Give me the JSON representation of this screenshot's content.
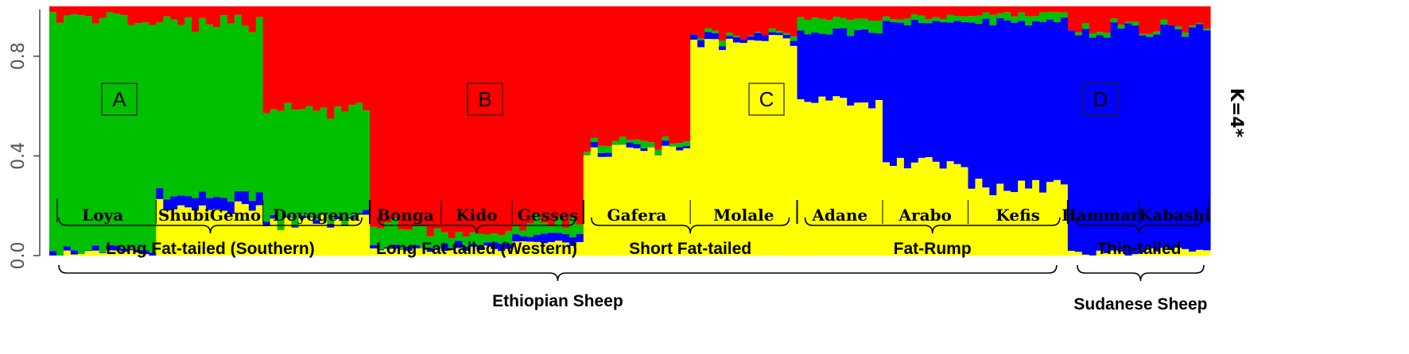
{
  "chart_data": {
    "type": "bar",
    "stacked": true,
    "ylim": [
      0,
      1
    ],
    "y_ticks": [
      "0.0",
      "0.4",
      "0.8"
    ],
    "side_label": "K=4*",
    "cluster_colors": {
      "red": "#ff0000",
      "green": "#00c000",
      "blue": "#0000ff",
      "yellow": "#ffff00"
    },
    "cluster_boxes": [
      "A",
      "B",
      "C",
      "D"
    ],
    "populations": [
      {
        "name": "Loya",
        "n": 15,
        "profile": {
          "yellow": 0.01,
          "blue": 0.01,
          "green": 0.92,
          "red": 0.06
        }
      },
      {
        "name": "ShubiGemo",
        "n": 15,
        "profile": {
          "yellow": 0.2,
          "blue": 0.05,
          "green": 0.68,
          "red": 0.07
        }
      },
      {
        "name": "Doyogena",
        "n": 15,
        "profile": {
          "yellow": 0.13,
          "blue": 0.01,
          "green": 0.45,
          "red": 0.41
        }
      },
      {
        "name": "Bonga",
        "n": 10,
        "profile": {
          "yellow": 0.02,
          "blue": 0.01,
          "green": 0.08,
          "red": 0.89
        }
      },
      {
        "name": "Kido",
        "n": 10,
        "profile": {
          "yellow": 0.03,
          "blue": 0.02,
          "green": 0.04,
          "red": 0.91
        }
      },
      {
        "name": "Gesses",
        "n": 10,
        "profile": {
          "yellow": 0.05,
          "blue": 0.03,
          "green": 0.06,
          "red": 0.86
        }
      },
      {
        "name": "Gafera",
        "n": 15,
        "profile": {
          "yellow": 0.42,
          "blue": 0.01,
          "green": 0.02,
          "red": 0.55
        }
      },
      {
        "name": "Molale",
        "n": 15,
        "profile": {
          "yellow": 0.86,
          "blue": 0.02,
          "green": 0.01,
          "red": 0.11
        }
      },
      {
        "name": "Adane",
        "n": 12,
        "profile": {
          "yellow": 0.62,
          "blue": 0.28,
          "green": 0.05,
          "red": 0.05
        }
      },
      {
        "name": "Arabo",
        "n": 12,
        "profile": {
          "yellow": 0.38,
          "blue": 0.56,
          "green": 0.02,
          "red": 0.04
        }
      },
      {
        "name": "Kefis",
        "n": 14,
        "profile": {
          "yellow": 0.28,
          "blue": 0.66,
          "green": 0.03,
          "red": 0.03
        }
      },
      {
        "name": "Hammari",
        "n": 10,
        "profile": {
          "yellow": 0.01,
          "blue": 0.9,
          "green": 0.01,
          "red": 0.08
        }
      },
      {
        "name": "Kabashi",
        "n": 10,
        "profile": {
          "yellow": 0.02,
          "blue": 0.89,
          "green": 0.01,
          "red": 0.08
        }
      }
    ],
    "groups": [
      {
        "label": "Long Fat-tailed (Southern)",
        "populations": [
          "Loya",
          "ShubiGemo",
          "Doyogena"
        ]
      },
      {
        "label": "Long Fat-tailed  (Western)",
        "populations": [
          "Bonga",
          "Kido",
          "Gesses"
        ]
      },
      {
        "label": "Short Fat-tailed",
        "populations": [
          "Gafera",
          "Molale"
        ]
      },
      {
        "label": "Fat-Rump",
        "populations": [
          "Adane",
          "Arabo",
          "Kefis"
        ]
      },
      {
        "label": "Thin-tailed",
        "populations": [
          "Hammari",
          "Kabashi"
        ]
      }
    ],
    "supergroups": [
      {
        "label": "Ethiopian Sheep",
        "populations": [
          "Loya",
          "ShubiGemo",
          "Doyogena",
          "Bonga",
          "Kido",
          "Gesses",
          "Gafera",
          "Molale",
          "Adane",
          "Arabo",
          "Kefis"
        ]
      },
      {
        "label": "Sudanese Sheep",
        "populations": [
          "Hammari",
          "Kabashi"
        ]
      }
    ]
  }
}
